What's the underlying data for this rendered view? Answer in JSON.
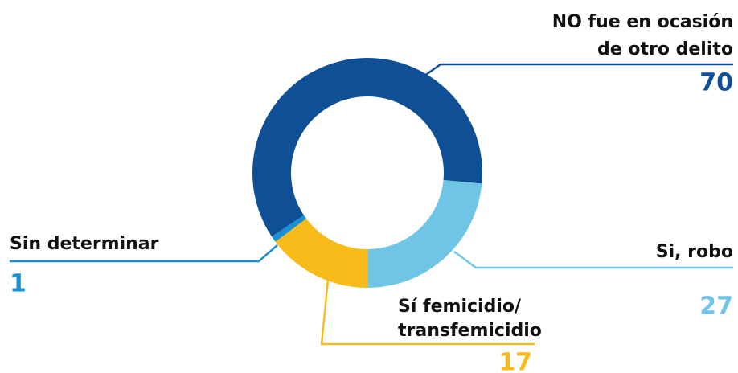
{
  "chart_data": {
    "type": "donut",
    "categories": [
      [
        "NO fue en ocasión",
        "de otro delito"
      ],
      [
        "Si, robo"
      ],
      [
        "Sí femicidio/",
        "transfemicidio"
      ],
      [
        "Sin determinar"
      ]
    ],
    "values": [
      70,
      27,
      17,
      1
    ],
    "colors": [
      "#0f4f96",
      "#6fc5e6",
      "#f7bb1a",
      "#1d8fd4"
    ]
  }
}
